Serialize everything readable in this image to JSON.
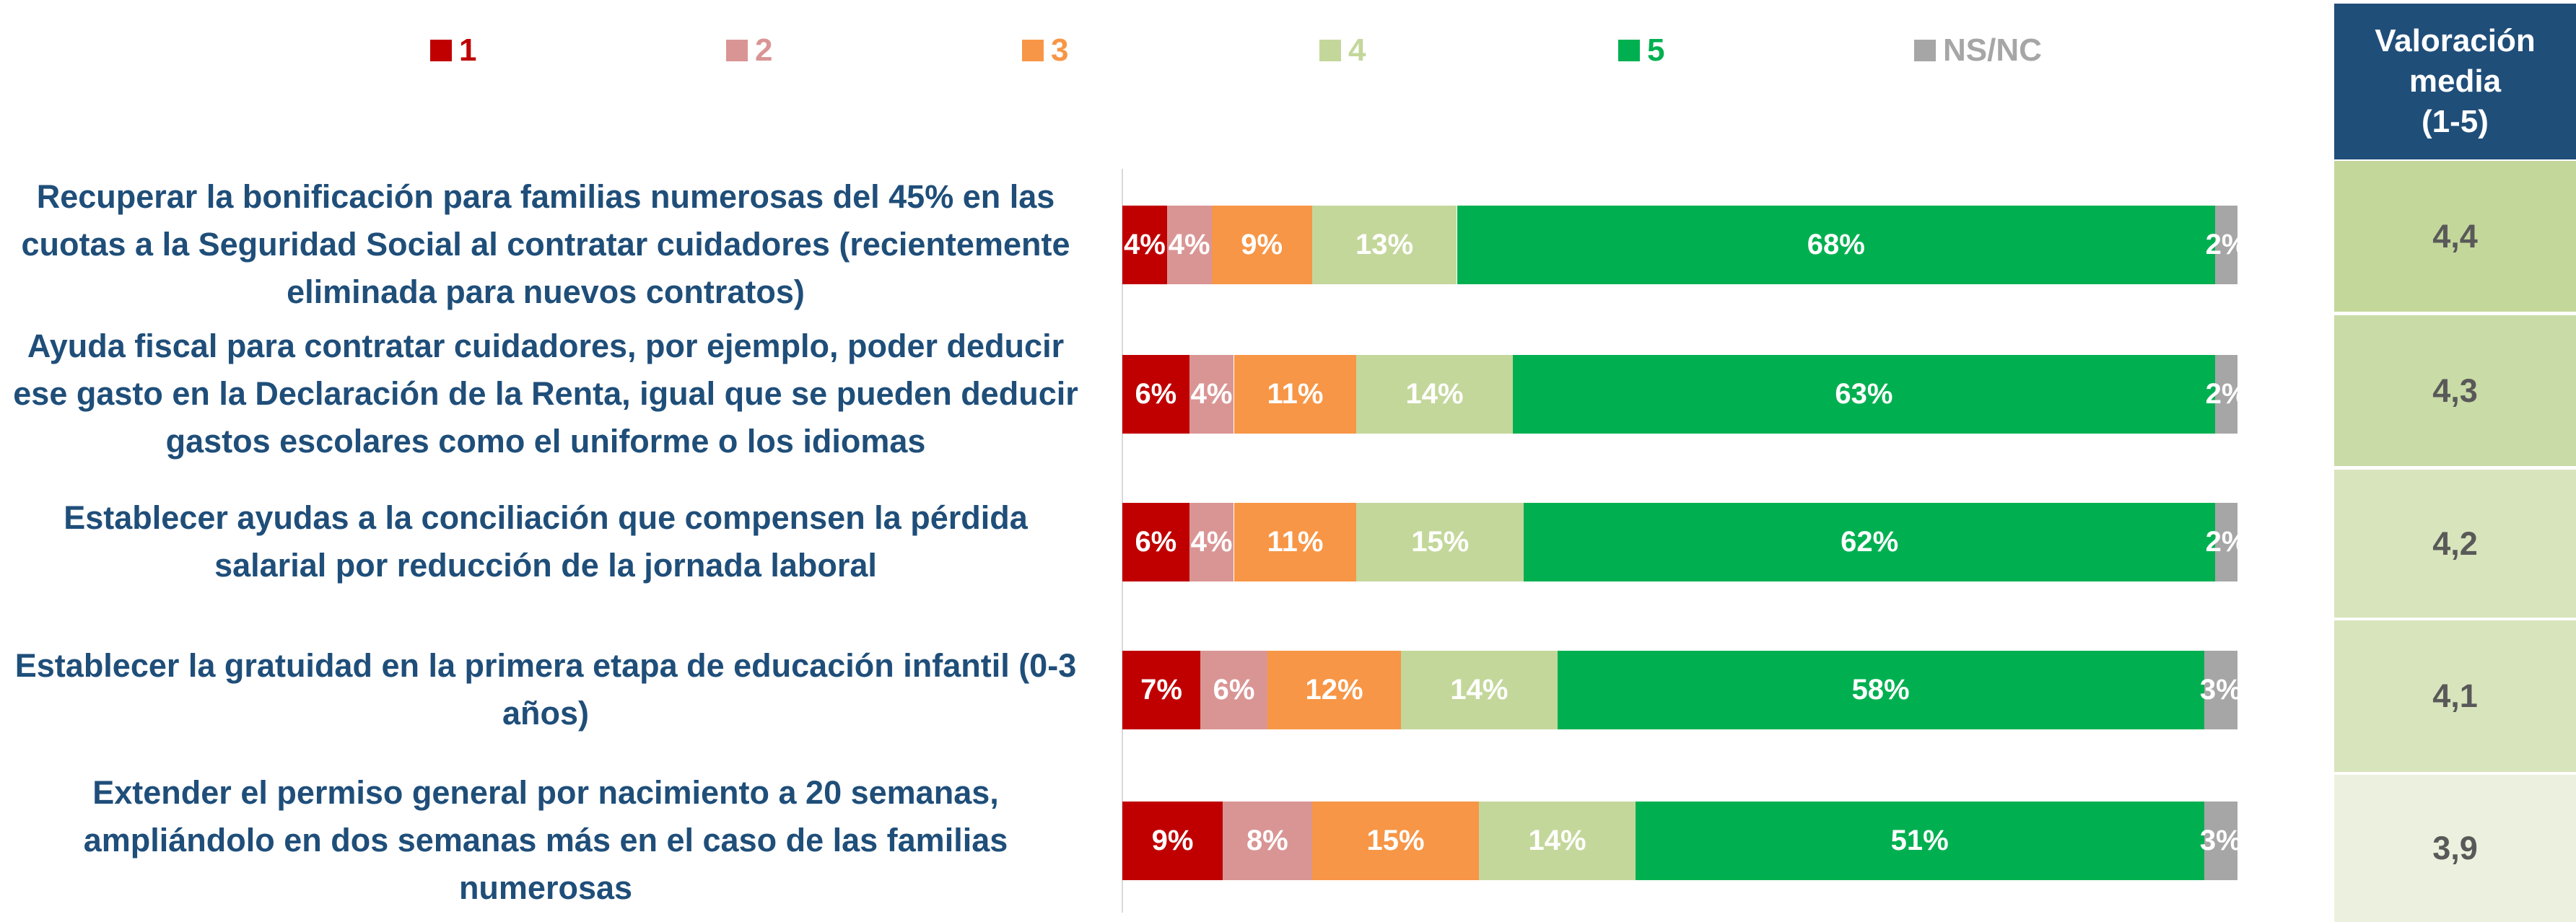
{
  "chart_data": {
    "type": "stacked_bar_horizontal",
    "categories": [
      "Recuperar la bonificación para familias numerosas del 45% en las cuotas a la Seguridad Social al contratar cuidadores (recientemente eliminada para nuevos contratos)",
      "Ayuda fiscal para contratar cuidadores, por ejemplo, poder deducir ese gasto en la Declaración de la Renta, igual que se pueden deducir gastos escolares como el uniforme o los idiomas",
      "Establecer ayudas a la conciliación que compensen la pérdida salarial por reducción de la jornada laboral",
      "Establecer la gratuidad en la primera etapa de educación infantil (0-3 años)",
      "Extender el permiso general por nacimiento a 20 semanas, ampliándolo en dos semanas más en el caso de las familias numerosas"
    ],
    "series": [
      {
        "name": "1",
        "color": "#c00000",
        "values": [
          4,
          6,
          6,
          7,
          9
        ],
        "value_labels": [
          "4%",
          "6%",
          "6%",
          "7%",
          "9%"
        ]
      },
      {
        "name": "2",
        "color": "#d99594",
        "values": [
          4,
          4,
          4,
          6,
          8
        ],
        "value_labels": [
          "4%",
          "4%",
          "4%",
          "6%",
          "8%"
        ]
      },
      {
        "name": "3",
        "color": "#f79646",
        "values": [
          9,
          11,
          11,
          12,
          15
        ],
        "value_labels": [
          "9%",
          "11%",
          "11%",
          "12%",
          "15%"
        ]
      },
      {
        "name": "4",
        "color": "#c4d79b",
        "values": [
          13,
          14,
          15,
          14,
          14
        ],
        "value_labels": [
          "13%",
          "14%",
          "15%",
          "14%",
          "14%"
        ]
      },
      {
        "name": "5",
        "color": "#00b050",
        "values": [
          68,
          63,
          62,
          58,
          51
        ],
        "value_labels": [
          "68%",
          "63%",
          "62%",
          "58%",
          "51%"
        ]
      },
      {
        "name": "NS/NC",
        "color": "#a6a6a6",
        "values": [
          2,
          2,
          2,
          3,
          3
        ],
        "value_labels": [
          "2%",
          "2%",
          "2%",
          "3%",
          "3%"
        ]
      }
    ],
    "legend": "top",
    "mean_table": {
      "title": "Valoración\nmedia\n(1-5)",
      "values": [
        4.4,
        4.3,
        4.2,
        4.1,
        3.9
      ],
      "value_labels": [
        "4,4",
        "4,3",
        "4,2",
        "4,1",
        "3,9"
      ],
      "colors": [
        "#c4d79b",
        "#c9dba6",
        "#d8e4bc",
        "#d8e4bc",
        "#ebf1de"
      ]
    }
  }
}
